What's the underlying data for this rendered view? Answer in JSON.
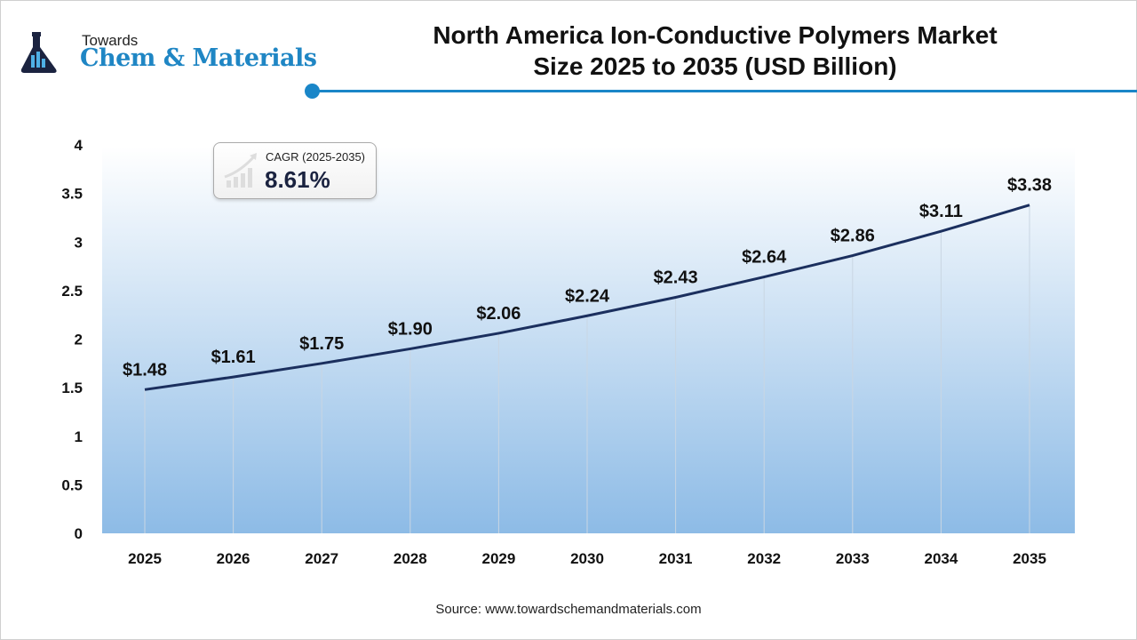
{
  "logo": {
    "small": "Towards",
    "big": "Chem & Materials"
  },
  "title_line1": "North America Ion-Conductive Polymers Market",
  "title_line2": "Size 2025 to 2035 (USD Billion)",
  "cagr": {
    "label": "CAGR (2025-2035)",
    "value": "8.61%",
    "icon": "growth-chart-icon"
  },
  "source": "Source: www.towardschemandmaterials.com",
  "colors": {
    "line": "#1b2f5e",
    "area_bottom": "#8dbbe6",
    "accent": "#1a86c8"
  },
  "chart_data": {
    "type": "area",
    "categories": [
      "2025",
      "2026",
      "2027",
      "2028",
      "2029",
      "2030",
      "2031",
      "2032",
      "2033",
      "2034",
      "2035"
    ],
    "values": [
      1.48,
      1.61,
      1.75,
      1.9,
      2.06,
      2.24,
      2.43,
      2.64,
      2.86,
      3.11,
      3.38
    ],
    "data_labels": [
      "$1.48",
      "$1.61",
      "$1.75",
      "$1.90",
      "$2.06",
      "$2.24",
      "$2.43",
      "$2.64",
      "$2.86",
      "$3.11",
      "$3.38"
    ],
    "yticks": [
      "0",
      "0.5",
      "1",
      "1.5",
      "2",
      "2.5",
      "3",
      "3.5",
      "4"
    ],
    "ylim": [
      0,
      4
    ],
    "grid": "vertical lines at categories",
    "legend": "none"
  }
}
